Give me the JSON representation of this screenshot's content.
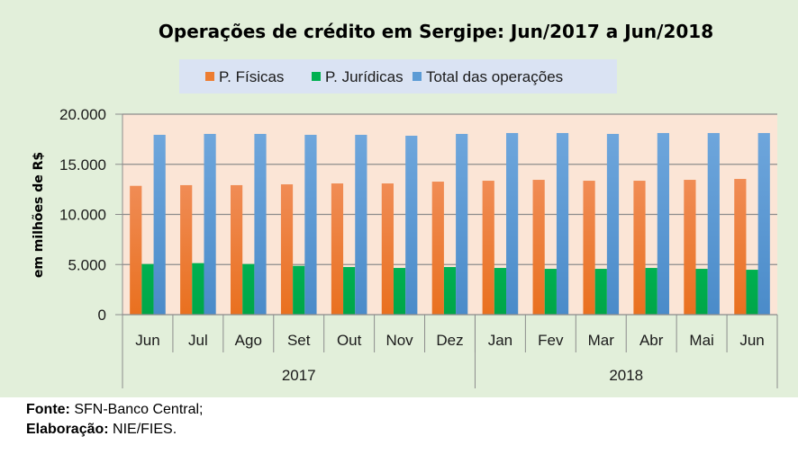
{
  "chart_data": {
    "type": "bar",
    "title": "Operações de crédito em Sergipe: Jun/2017 a Jun/2018",
    "xlabel": "",
    "ylabel": "em milhões de R$",
    "ylim": [
      0,
      20000
    ],
    "yticks": [
      0,
      5000,
      10000,
      15000,
      20000
    ],
    "ytick_labels": [
      "0",
      "5.000",
      "10.000",
      "15.000",
      "20.000"
    ],
    "grid": true,
    "legend_position": "top",
    "categories": [
      "Jun",
      "Jul",
      "Ago",
      "Set",
      "Out",
      "Nov",
      "Dez",
      "Jan",
      "Fev",
      "Mar",
      "Abr",
      "Mai",
      "Jun"
    ],
    "groups": [
      {
        "label": "2017",
        "start": 0,
        "count": 7
      },
      {
        "label": "2018",
        "start": 7,
        "count": 6
      }
    ],
    "series": [
      {
        "name": "P. Físicas",
        "color": "#ed7d31",
        "values": [
          12850,
          12920,
          12920,
          13000,
          13090,
          13090,
          13270,
          13360,
          13450,
          13360,
          13360,
          13450,
          13540
        ]
      },
      {
        "name": "P. Jurídicas",
        "color": "#00b050",
        "values": [
          5050,
          5140,
          5050,
          4870,
          4750,
          4660,
          4750,
          4660,
          4570,
          4570,
          4660,
          4570,
          4480
        ]
      },
      {
        "name": "Total das operações",
        "color": "#5b9bd5",
        "values": [
          17940,
          18030,
          18030,
          17940,
          17940,
          17850,
          18030,
          18120,
          18120,
          18030,
          18120,
          18120,
          18120
        ]
      }
    ]
  },
  "footer": {
    "source_label": "Fonte:",
    "source_value": " SFN-Banco Central;",
    "credits_label": "Elaboração:",
    "credits_value": " NIE/FIES."
  }
}
